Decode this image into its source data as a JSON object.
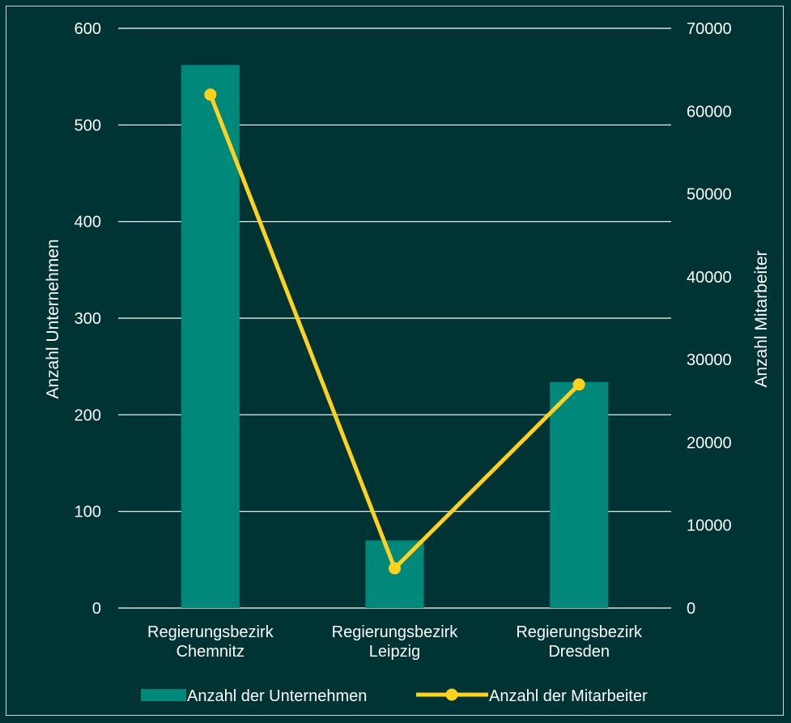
{
  "chart_data": {
    "type": "bar+line",
    "categories": [
      [
        "Regierungsbezirk",
        "Chemnitz"
      ],
      [
        "Regierungsbezirk",
        "Leipzig"
      ],
      [
        "Regierungsbezirk",
        "Dresden"
      ]
    ],
    "series": [
      {
        "name": "Anzahl der Unternehmen",
        "type": "bar",
        "axis": "left",
        "color": "#00897b",
        "values": [
          562,
          70,
          234
        ]
      },
      {
        "name": "Anzahl der Mitarbeiter",
        "type": "line",
        "axis": "right",
        "color": "#ffd21f",
        "values": [
          62000,
          4800,
          27000
        ]
      }
    ],
    "y_left": {
      "label": "Anzahl Unternehmen",
      "range": [
        0,
        600
      ],
      "ticks": [
        "0",
        "100",
        "200",
        "300",
        "400",
        "500",
        "600"
      ]
    },
    "y_right": {
      "label": "Anzahl Mitarbeiter",
      "range": [
        0,
        70000
      ],
      "ticks": [
        "0",
        "10000",
        "20000",
        "30000",
        "40000",
        "50000",
        "60000",
        "70000"
      ]
    },
    "grid": true,
    "legend_position": "bottom",
    "colors": {
      "background": "#003333",
      "grid": "#ffffff",
      "text": "#ffffff"
    }
  }
}
